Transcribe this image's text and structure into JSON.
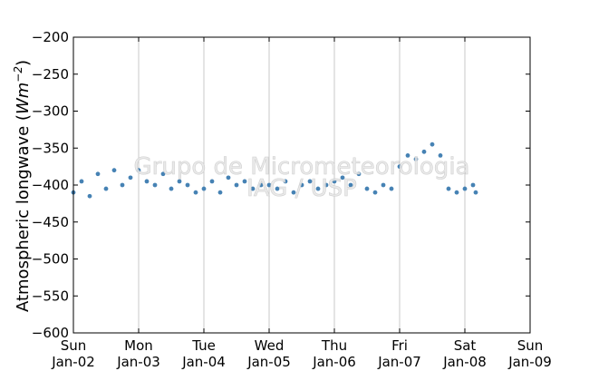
{
  "chart_data": {
    "type": "scatter",
    "title": "",
    "xlabel": "",
    "ylabel": "Atmospheric longwave (Wm⁻²)",
    "ylabel_text": "Atmospheric longwave (",
    "ylabel_unit": "Wm",
    "ylabel_exp": "−2",
    "ylabel_close": ")",
    "ylim": [
      -600,
      -200
    ],
    "xlim": [
      "2011-01-02",
      "2011-01-09"
    ],
    "grid": "vertical",
    "y_ticks": [
      -200,
      -250,
      -300,
      -350,
      -400,
      -450,
      -500,
      -550,
      -600
    ],
    "y_tick_labels": [
      "−200",
      "−250",
      "−300",
      "−350",
      "−400",
      "−450",
      "−500",
      "−550",
      "−600"
    ],
    "x_ticks": [
      {
        "day": "Sun",
        "date": "Jan-02"
      },
      {
        "day": "Mon",
        "date": "Jan-03"
      },
      {
        "day": "Tue",
        "date": "Jan-04"
      },
      {
        "day": "Wed",
        "date": "Jan-05"
      },
      {
        "day": "Thu",
        "date": "Jan-06"
      },
      {
        "day": "Fri",
        "date": "Jan-07"
      },
      {
        "day": "Sat",
        "date": "Jan-08"
      },
      {
        "day": "Sun",
        "date": "Jan-09"
      }
    ],
    "series": [
      {
        "color": "#4682b4",
        "points": [
          [
            "Jan-02 00:00",
            -410
          ],
          [
            "Jan-02 03:00",
            -395
          ],
          [
            "Jan-02 06:00",
            -415
          ],
          [
            "Jan-02 09:00",
            -385
          ],
          [
            "Jan-02 12:00",
            -405
          ],
          [
            "Jan-02 15:00",
            -380
          ],
          [
            "Jan-02 18:00",
            -400
          ],
          [
            "Jan-02 21:00",
            -390
          ],
          [
            "Jan-03 00:00",
            -380
          ],
          [
            "Jan-03 03:00",
            -395
          ],
          [
            "Jan-03 06:00",
            -400
          ],
          [
            "Jan-03 09:00",
            -385
          ],
          [
            "Jan-03 12:00",
            -405
          ],
          [
            "Jan-03 15:00",
            -395
          ],
          [
            "Jan-03 18:00",
            -400
          ],
          [
            "Jan-03 21:00",
            -410
          ],
          [
            "Jan-04 00:00",
            -405
          ],
          [
            "Jan-04 03:00",
            -395
          ],
          [
            "Jan-04 06:00",
            -410
          ],
          [
            "Jan-04 09:00",
            -390
          ],
          [
            "Jan-04 12:00",
            -400
          ],
          [
            "Jan-04 15:00",
            -395
          ],
          [
            "Jan-04 18:00",
            -405
          ],
          [
            "Jan-04 21:00",
            -400
          ],
          [
            "Jan-05 00:00",
            -400
          ],
          [
            "Jan-05 03:00",
            -405
          ],
          [
            "Jan-05 06:00",
            -395
          ],
          [
            "Jan-05 09:00",
            -410
          ],
          [
            "Jan-05 12:00",
            -400
          ],
          [
            "Jan-05 15:00",
            -395
          ],
          [
            "Jan-05 18:00",
            -405
          ],
          [
            "Jan-05 21:00",
            -400
          ],
          [
            "Jan-06 00:00",
            -395
          ],
          [
            "Jan-06 03:00",
            -390
          ],
          [
            "Jan-06 06:00",
            -400
          ],
          [
            "Jan-06 09:00",
            -385
          ],
          [
            "Jan-06 12:00",
            -405
          ],
          [
            "Jan-06 15:00",
            -410
          ],
          [
            "Jan-06 18:00",
            -400
          ],
          [
            "Jan-06 21:00",
            -405
          ],
          [
            "Jan-07 00:00",
            -375
          ],
          [
            "Jan-07 03:00",
            -360
          ],
          [
            "Jan-07 06:00",
            -365
          ],
          [
            "Jan-07 09:00",
            -355
          ],
          [
            "Jan-07 12:00",
            -345
          ],
          [
            "Jan-07 15:00",
            -360
          ],
          [
            "Jan-07 18:00",
            -405
          ],
          [
            "Jan-07 21:00",
            -410
          ],
          [
            "Jan-08 00:00",
            -405
          ],
          [
            "Jan-08 03:00",
            -400
          ],
          [
            "Jan-08 04:00",
            -410
          ]
        ]
      }
    ],
    "watermark_line1": "Grupo de Micrometeorologia",
    "watermark_line2": "IAG / USP"
  }
}
